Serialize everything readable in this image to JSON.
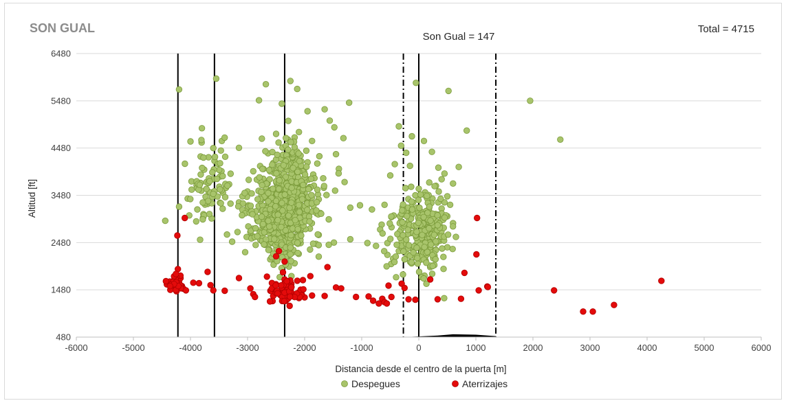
{
  "chart_data": {
    "type": "scatter",
    "title": "SON GUAL",
    "xlabel": "Distancia desde el centro de la puerta [m]",
    "ylabel": "Altitud [ft]",
    "xlim": [
      -6000,
      6000
    ],
    "ylim": [
      480,
      6480
    ],
    "xticks": [
      "-6000",
      "-5000",
      "-4000",
      "-3000",
      "-2000",
      "-1000",
      "0",
      "1000",
      "2000",
      "3000",
      "4000",
      "5000",
      "6000"
    ],
    "yticks": [
      "480",
      "1480",
      "2480",
      "3480",
      "4480",
      "5480",
      "6480"
    ],
    "grid": "horizontal",
    "legend_position": "bottom",
    "annotations": {
      "total": "Total = 4715",
      "gate": "Son Gual = 147"
    },
    "reference_lines": {
      "solid_x": [
        -4220,
        -3580,
        -2350,
        0
      ],
      "dashdot_x": [
        -270,
        1350
      ]
    },
    "terrain_profile": [
      [
        -270,
        480
      ],
      [
        -50,
        490
      ],
      [
        300,
        510
      ],
      [
        600,
        540
      ],
      [
        1000,
        530
      ],
      [
        1350,
        500
      ]
    ],
    "colors": {
      "despegues": "#a8c46b",
      "despegues_edge": "#7a9a3a",
      "aterrizajes": "#e30b0b",
      "aterrizajes_edge": "#b00000"
    },
    "series": [
      {
        "name": "Despegues",
        "points": [
          [
            -4200,
            5720
          ],
          [
            -3550,
            5950
          ],
          [
            -2680,
            5830
          ],
          [
            -2250,
            5900
          ],
          [
            -2130,
            5730
          ],
          [
            -2800,
            5490
          ],
          [
            -2400,
            5420
          ],
          [
            -1950,
            5260
          ],
          [
            -1650,
            5300
          ],
          [
            -1220,
            5440
          ],
          [
            -4000,
            4620
          ],
          [
            -3800,
            4900
          ],
          [
            -3600,
            4480
          ],
          [
            -3450,
            4630
          ],
          [
            -2750,
            4680
          ],
          [
            -2500,
            4780
          ],
          [
            -2100,
            4820
          ],
          [
            -1870,
            4630
          ],
          [
            -1560,
            5060
          ],
          [
            -1480,
            4920
          ],
          [
            -1320,
            4690
          ],
          [
            -1450,
            4350
          ],
          [
            -1400,
            4040
          ],
          [
            -1300,
            3760
          ],
          [
            -1200,
            3220
          ],
          [
            -1030,
            3270
          ],
          [
            -820,
            3180
          ],
          [
            -900,
            2470
          ],
          [
            -750,
            2410
          ],
          [
            -1200,
            2550
          ],
          [
            -4200,
            3240
          ],
          [
            -3980,
            3600
          ],
          [
            -3820,
            3920
          ],
          [
            -3720,
            3760
          ],
          [
            -3580,
            4210
          ],
          [
            -3480,
            3880
          ],
          [
            -3380,
            3640
          ],
          [
            -3360,
            2650
          ],
          [
            -3270,
            2500
          ],
          [
            -3150,
            3330
          ],
          [
            -3050,
            3490
          ],
          [
            -2900,
            3990
          ],
          [
            -2780,
            4100
          ],
          [
            -2650,
            3730
          ],
          [
            -2580,
            3010
          ],
          [
            -2520,
            2700
          ],
          [
            -2450,
            2930
          ],
          [
            -3700,
            3300
          ],
          [
            -3630,
            2990
          ],
          [
            -3880,
            3180
          ],
          [
            -3900,
            2930
          ],
          [
            -4050,
            3410
          ],
          [
            -600,
            3280
          ],
          [
            -500,
            3900
          ],
          [
            -420,
            4140
          ],
          [
            -350,
            4940
          ],
          [
            -310,
            4530
          ],
          [
            -220,
            4380
          ],
          [
            -50,
            5860
          ],
          [
            -120,
            4730
          ],
          [
            90,
            4630
          ],
          [
            230,
            4400
          ],
          [
            520,
            5690
          ],
          [
            840,
            4850
          ],
          [
            700,
            4080
          ],
          [
            600,
            3730
          ],
          [
            1950,
            5480
          ],
          [
            2480,
            4660
          ],
          [
            -650,
            2860
          ],
          [
            -480,
            3020
          ],
          [
            -300,
            2510
          ],
          [
            -200,
            2230
          ],
          [
            -150,
            2070
          ],
          [
            -50,
            2210
          ],
          [
            50,
            2280
          ],
          [
            100,
            2410
          ],
          [
            150,
            2560
          ],
          [
            200,
            2680
          ],
          [
            250,
            2810
          ],
          [
            300,
            2930
          ],
          [
            350,
            3070
          ],
          [
            400,
            3200
          ],
          [
            450,
            3330
          ],
          [
            500,
            3460
          ],
          [
            550,
            3280
          ],
          [
            600,
            2890
          ],
          [
            650,
            2600
          ],
          [
            -100,
            3330
          ],
          [
            -60,
            3480
          ],
          [
            0,
            3620
          ],
          [
            60,
            3100
          ],
          [
            120,
            2980
          ],
          [
            180,
            3200
          ],
          [
            240,
            3410
          ],
          [
            300,
            3680
          ],
          [
            350,
            3560
          ],
          [
            400,
            3820
          ],
          [
            450,
            3940
          ],
          [
            500,
            2380
          ],
          [
            -350,
            2300
          ],
          [
            -450,
            2140
          ],
          [
            -550,
            2220
          ],
          [
            120,
            2100
          ],
          [
            200,
            1960
          ],
          [
            100,
            1780
          ]
        ],
        "clusters": [
          {
            "cx": -2380,
            "cy": 3100,
            "sx": 210,
            "sy": 480,
            "n": 560
          },
          {
            "cx": -2200,
            "cy": 3900,
            "sx": 160,
            "sy": 420,
            "n": 120
          },
          {
            "cx": -3700,
            "cy": 3700,
            "sx": 230,
            "sy": 420,
            "n": 70
          },
          {
            "cx": -2800,
            "cy": 3200,
            "sx": 220,
            "sy": 380,
            "n": 60
          },
          {
            "cx": -1900,
            "cy": 3150,
            "sx": 200,
            "sy": 420,
            "n": 60
          },
          {
            "cx": 100,
            "cy": 2700,
            "sx": 200,
            "sy": 420,
            "n": 210
          },
          {
            "cx": -300,
            "cy": 2900,
            "sx": 160,
            "sy": 450,
            "n": 40
          }
        ]
      },
      {
        "name": "Aterrizajes",
        "points": [
          [
            -4100,
            3000
          ],
          [
            -4230,
            2630
          ],
          [
            -4220,
            1920
          ],
          [
            -4250,
            1800
          ],
          [
            -4280,
            1730
          ],
          [
            -4200,
            1640
          ],
          [
            -4150,
            1560
          ],
          [
            -4120,
            1500
          ],
          [
            -4080,
            1470
          ],
          [
            -3950,
            1630
          ],
          [
            -3850,
            1620
          ],
          [
            -3700,
            1860
          ],
          [
            -3650,
            1580
          ],
          [
            -3600,
            1470
          ],
          [
            -3400,
            1460
          ],
          [
            -3150,
            1730
          ],
          [
            -2950,
            1510
          ],
          [
            -2900,
            1390
          ],
          [
            -2870,
            1330
          ],
          [
            -2660,
            1760
          ],
          [
            -2600,
            1460
          ],
          [
            -2550,
            1350
          ],
          [
            -2450,
            2300
          ],
          [
            -2500,
            2190
          ],
          [
            -2350,
            2080
          ],
          [
            -2380,
            1850
          ],
          [
            -2350,
            1700
          ],
          [
            -2350,
            1620
          ],
          [
            -2300,
            1550
          ],
          [
            -2250,
            1450
          ],
          [
            -2200,
            1380
          ],
          [
            -2150,
            1340
          ],
          [
            -2100,
            1310
          ],
          [
            -2050,
            1380
          ],
          [
            -2000,
            1320
          ],
          [
            -1900,
            1770
          ],
          [
            -1870,
            1360
          ],
          [
            -1600,
            1960
          ],
          [
            -1650,
            1350
          ],
          [
            -1450,
            1530
          ],
          [
            -1360,
            1510
          ],
          [
            -1100,
            1330
          ],
          [
            -880,
            1340
          ],
          [
            -800,
            1250
          ],
          [
            -700,
            1190
          ],
          [
            -640,
            1290
          ],
          [
            -600,
            1220
          ],
          [
            -560,
            1190
          ],
          [
            -530,
            1570
          ],
          [
            -480,
            1330
          ],
          [
            -300,
            1610
          ],
          [
            -250,
            1520
          ],
          [
            -180,
            1280
          ],
          [
            -60,
            1270
          ],
          [
            200,
            1700
          ],
          [
            330,
            1280
          ],
          [
            740,
            1290
          ],
          [
            800,
            1840
          ],
          [
            1020,
            3000
          ],
          [
            1050,
            1470
          ],
          [
            1010,
            2230
          ],
          [
            1200,
            1550
          ],
          [
            1210,
            1540
          ],
          [
            2370,
            1470
          ],
          [
            2880,
            1020
          ],
          [
            3050,
            1020
          ],
          [
            3420,
            1160
          ],
          [
            4250,
            1670
          ]
        ],
        "clusters": [
          {
            "cx": -4270,
            "cy": 1620,
            "sx": 60,
            "sy": 90,
            "n": 35
          },
          {
            "cx": -2340,
            "cy": 1420,
            "sx": 110,
            "sy": 130,
            "n": 45
          },
          {
            "cx": -2150,
            "cy": 1380,
            "sx": 90,
            "sy": 90,
            "n": 15
          }
        ]
      }
    ]
  }
}
